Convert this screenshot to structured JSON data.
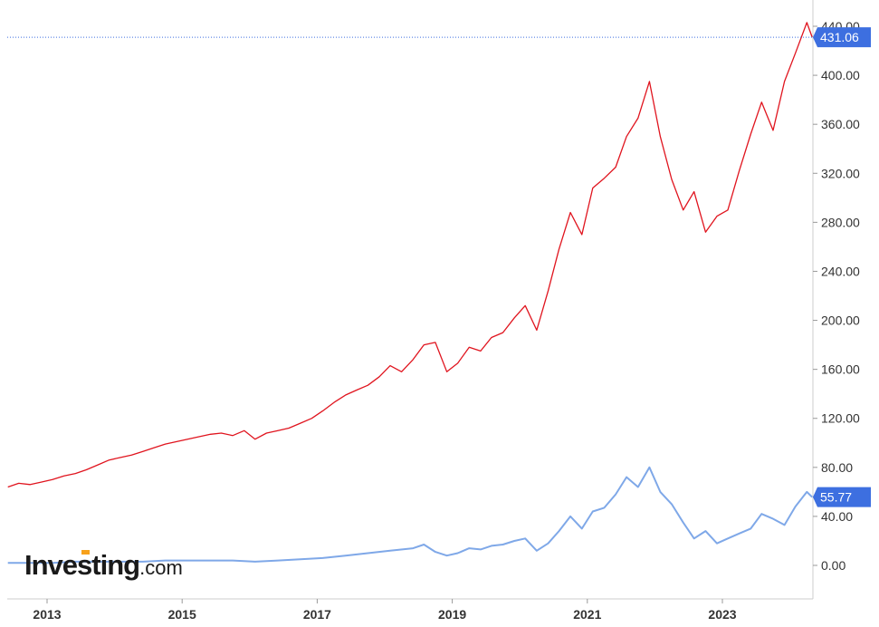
{
  "logo": {
    "name": "Investing",
    "suffix": ".com"
  },
  "chart_data": {
    "type": "line",
    "y_ticks": [
      "0.00",
      "40.00",
      "80.00",
      "120.00",
      "160.00",
      "200.00",
      "240.00",
      "280.00",
      "320.00",
      "360.00",
      "400.00",
      "440.00"
    ],
    "y_tick_values": [
      0,
      40,
      80,
      120,
      160,
      200,
      240,
      280,
      320,
      360,
      400,
      440
    ],
    "x_ticks": [
      "2013",
      "2015",
      "2017",
      "2019",
      "2021",
      "2023"
    ],
    "x_tick_values": [
      2013,
      2015,
      2017,
      2019,
      2021,
      2023
    ],
    "xlim": [
      2012.42,
      2024.33
    ],
    "ylim": [
      -10,
      452
    ],
    "grid": false,
    "series": [
      {
        "color": "#e0141e",
        "last_label": "431.06",
        "marker_color": "#3d6fe0",
        "points": [
          [
            2012.42,
            64
          ],
          [
            2012.58,
            67
          ],
          [
            2012.75,
            66
          ],
          [
            2012.92,
            68
          ],
          [
            2013.08,
            70
          ],
          [
            2013.25,
            73
          ],
          [
            2013.42,
            75
          ],
          [
            2013.58,
            78
          ],
          [
            2013.75,
            82
          ],
          [
            2013.92,
            86
          ],
          [
            2014.08,
            88
          ],
          [
            2014.25,
            90
          ],
          [
            2014.42,
            93
          ],
          [
            2014.58,
            96
          ],
          [
            2014.75,
            99
          ],
          [
            2014.92,
            101
          ],
          [
            2015.08,
            103
          ],
          [
            2015.25,
            105
          ],
          [
            2015.42,
            107
          ],
          [
            2015.58,
            108
          ],
          [
            2015.75,
            106
          ],
          [
            2015.92,
            110
          ],
          [
            2016.08,
            103
          ],
          [
            2016.25,
            108
          ],
          [
            2016.42,
            110
          ],
          [
            2016.58,
            112
          ],
          [
            2016.75,
            116
          ],
          [
            2016.92,
            120
          ],
          [
            2017.08,
            126
          ],
          [
            2017.25,
            133
          ],
          [
            2017.42,
            139
          ],
          [
            2017.58,
            143
          ],
          [
            2017.75,
            147
          ],
          [
            2017.92,
            154
          ],
          [
            2018.08,
            163
          ],
          [
            2018.25,
            158
          ],
          [
            2018.42,
            168
          ],
          [
            2018.58,
            180
          ],
          [
            2018.75,
            182
          ],
          [
            2018.92,
            158
          ],
          [
            2019.08,
            165
          ],
          [
            2019.25,
            178
          ],
          [
            2019.42,
            175
          ],
          [
            2019.58,
            186
          ],
          [
            2019.75,
            190
          ],
          [
            2019.92,
            202
          ],
          [
            2020.08,
            212
          ],
          [
            2020.25,
            192
          ],
          [
            2020.42,
            224
          ],
          [
            2020.58,
            258
          ],
          [
            2020.75,
            288
          ],
          [
            2020.92,
            270
          ],
          [
            2021.08,
            308
          ],
          [
            2021.25,
            316
          ],
          [
            2021.42,
            325
          ],
          [
            2021.58,
            350
          ],
          [
            2021.75,
            365
          ],
          [
            2021.92,
            395
          ],
          [
            2022.08,
            350
          ],
          [
            2022.25,
            315
          ],
          [
            2022.42,
            290
          ],
          [
            2022.58,
            305
          ],
          [
            2022.75,
            272
          ],
          [
            2022.92,
            285
          ],
          [
            2023.08,
            290
          ],
          [
            2023.25,
            322
          ],
          [
            2023.42,
            352
          ],
          [
            2023.58,
            378
          ],
          [
            2023.75,
            355
          ],
          [
            2023.92,
            395
          ],
          [
            2024.08,
            418
          ],
          [
            2024.25,
            443
          ],
          [
            2024.33,
            431.06
          ]
        ]
      },
      {
        "color": "#7fa8e8",
        "last_label": "55.77",
        "marker_color": "#3d6fe0",
        "points": [
          [
            2012.42,
            2
          ],
          [
            2012.75,
            2
          ],
          [
            2013.08,
            2
          ],
          [
            2013.42,
            3
          ],
          [
            2013.75,
            3
          ],
          [
            2014.08,
            3
          ],
          [
            2014.42,
            3
          ],
          [
            2014.75,
            4
          ],
          [
            2015.08,
            4
          ],
          [
            2015.42,
            4
          ],
          [
            2015.75,
            4
          ],
          [
            2016.08,
            3
          ],
          [
            2016.42,
            4
          ],
          [
            2016.75,
            5
          ],
          [
            2017.08,
            6
          ],
          [
            2017.42,
            8
          ],
          [
            2017.75,
            10
          ],
          [
            2018.08,
            12
          ],
          [
            2018.42,
            14
          ],
          [
            2018.58,
            17
          ],
          [
            2018.75,
            11
          ],
          [
            2018.92,
            8
          ],
          [
            2019.08,
            10
          ],
          [
            2019.25,
            14
          ],
          [
            2019.42,
            13
          ],
          [
            2019.58,
            16
          ],
          [
            2019.75,
            17
          ],
          [
            2019.92,
            20
          ],
          [
            2020.08,
            22
          ],
          [
            2020.25,
            12
          ],
          [
            2020.42,
            18
          ],
          [
            2020.58,
            28
          ],
          [
            2020.75,
            40
          ],
          [
            2020.92,
            30
          ],
          [
            2021.08,
            44
          ],
          [
            2021.25,
            47
          ],
          [
            2021.42,
            58
          ],
          [
            2021.58,
            72
          ],
          [
            2021.75,
            64
          ],
          [
            2021.92,
            80
          ],
          [
            2022.08,
            60
          ],
          [
            2022.25,
            50
          ],
          [
            2022.42,
            35
          ],
          [
            2022.58,
            22
          ],
          [
            2022.75,
            28
          ],
          [
            2022.92,
            18
          ],
          [
            2023.08,
            22
          ],
          [
            2023.25,
            26
          ],
          [
            2023.42,
            30
          ],
          [
            2023.58,
            42
          ],
          [
            2023.75,
            38
          ],
          [
            2023.92,
            33
          ],
          [
            2024.08,
            48
          ],
          [
            2024.25,
            60
          ],
          [
            2024.33,
            55.77
          ]
        ]
      }
    ]
  }
}
